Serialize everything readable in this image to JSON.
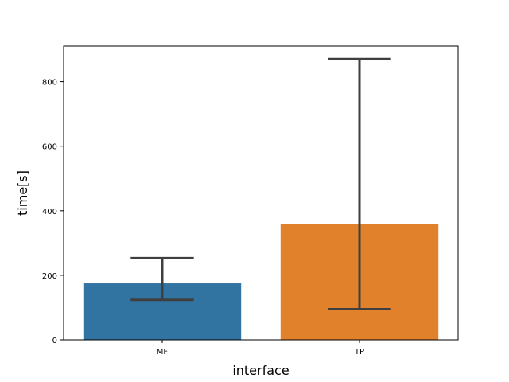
{
  "chart_data": {
    "type": "bar",
    "title": "",
    "xlabel": "interface",
    "ylabel": "time[s]",
    "categories": [
      "MF",
      "TP"
    ],
    "values": [
      175,
      358
    ],
    "error_low": [
      124,
      95
    ],
    "error_high": [
      253,
      870
    ],
    "ylim": [
      0,
      910
    ],
    "yticks": [
      0,
      200,
      400,
      600,
      800
    ],
    "ytick_labels": [
      "0",
      "200",
      "400",
      "600",
      "800"
    ],
    "grid": false,
    "legend": "none",
    "colors": [
      "#3274a1",
      "#e1812c"
    ],
    "errorbar_color": "#3f3f3f"
  }
}
